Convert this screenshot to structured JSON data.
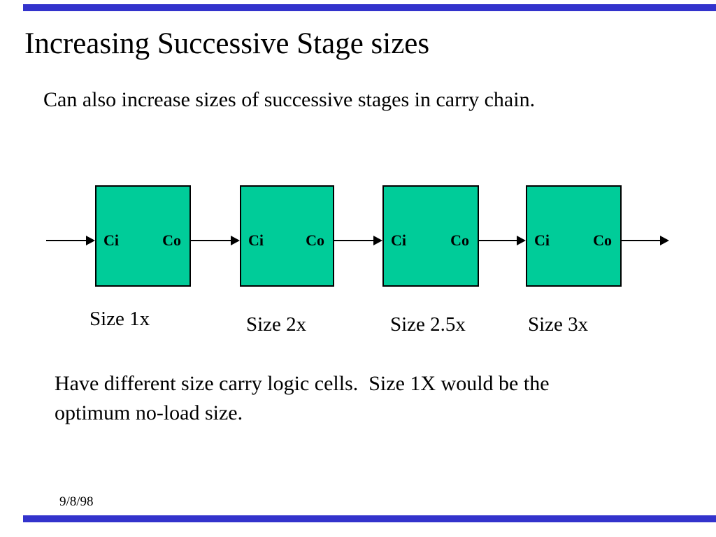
{
  "colors": {
    "accent_bar_blue": "#3333CC",
    "stage_fill_green": "#00CC99",
    "stage_border": "#000000",
    "text": "#000000",
    "background": "#FFFFFF"
  },
  "slide": {
    "title": "Increasing Successive Stage sizes",
    "subtitle": "Can also increase sizes of successive stages in carry chain.",
    "body_lines": [
      "Have different size carry logic cells.  Size 1X would be the",
      "optimum no-load size."
    ],
    "date": "9/8/98"
  },
  "diagram": {
    "stages": [
      {
        "input_pin": "Ci",
        "output_pin": "Co",
        "size_label": "Size 1x"
      },
      {
        "input_pin": "Ci",
        "output_pin": "Co",
        "size_label": "Size 2x"
      },
      {
        "input_pin": "Ci",
        "output_pin": "Co",
        "size_label": "Size 2.5x"
      },
      {
        "input_pin": "Ci",
        "output_pin": "Co",
        "size_label": "Size 3x"
      }
    ]
  }
}
